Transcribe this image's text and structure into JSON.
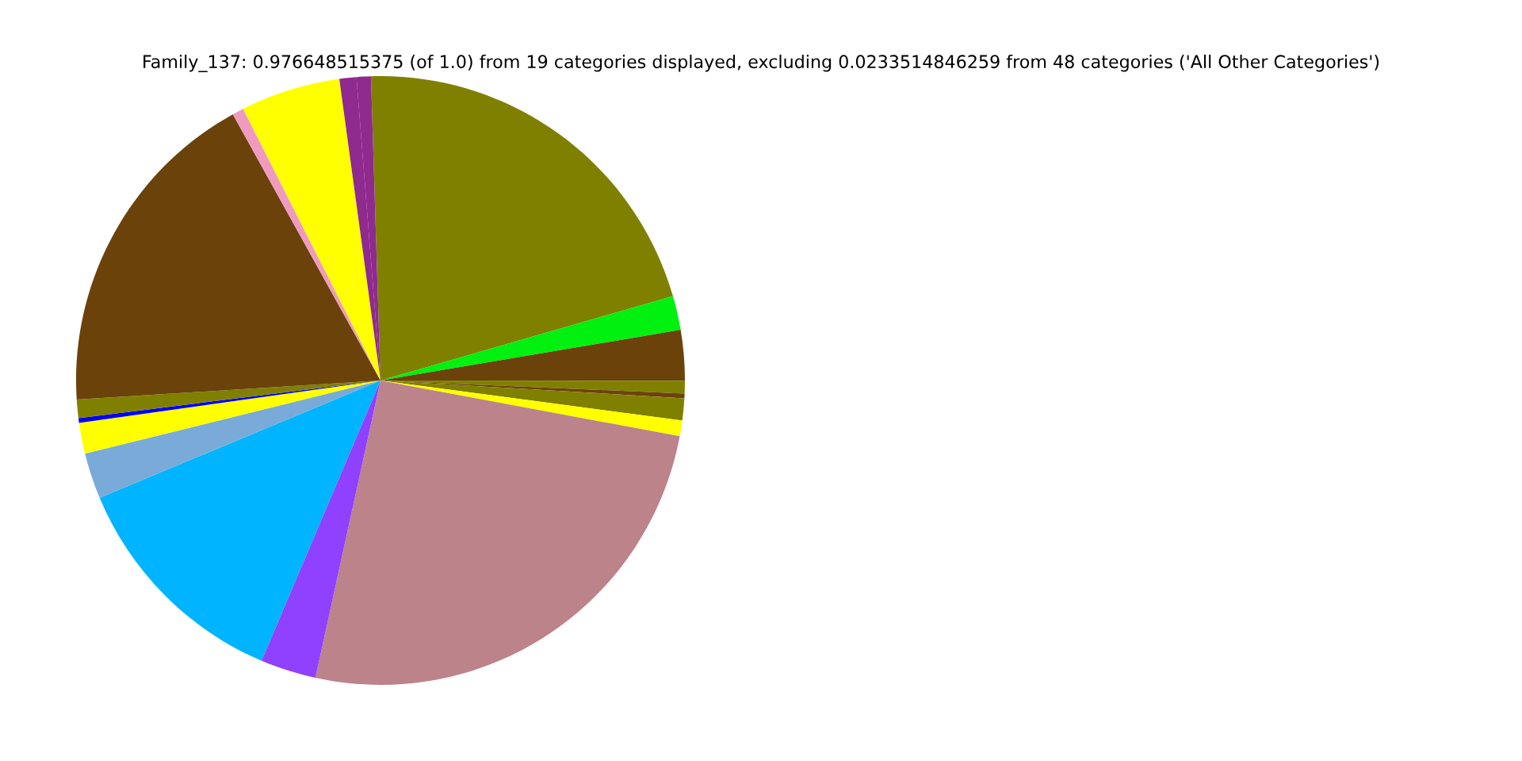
{
  "chart_data": {
    "type": "pie",
    "title": "Family_137: 0.976648515375 (of 1.0) from 19 categories displayed, excluding 0.0233514846259 from 48 categories ('All Other Categories')",
    "categories": [
      null,
      null,
      null,
      null,
      null,
      null,
      null,
      null,
      null,
      null,
      null,
      null,
      null,
      null,
      null,
      null,
      null,
      null,
      null
    ],
    "values": [
      21.03,
      1.81,
      2.67,
      0.67,
      0.25,
      1.17,
      0.83,
      25.5,
      2.96,
      12.31,
      2.44,
      1.64,
      0.25,
      0.97,
      17.94,
      0.61,
      5.29,
      0.9,
      0.76
    ],
    "colors": [
      "#808000",
      "#00f010",
      "#6b420a",
      "#808000",
      "#6b420a",
      "#808000",
      "#ffff00",
      "#bc838b",
      "#9040ff",
      "#00b4ff",
      "#7aaad8",
      "#ffff00",
      "#0000ff",
      "#808000",
      "#6b420a",
      "#f09ac0",
      "#ffff00",
      "#8f2a8f",
      "#8f2a8f"
    ]
  }
}
